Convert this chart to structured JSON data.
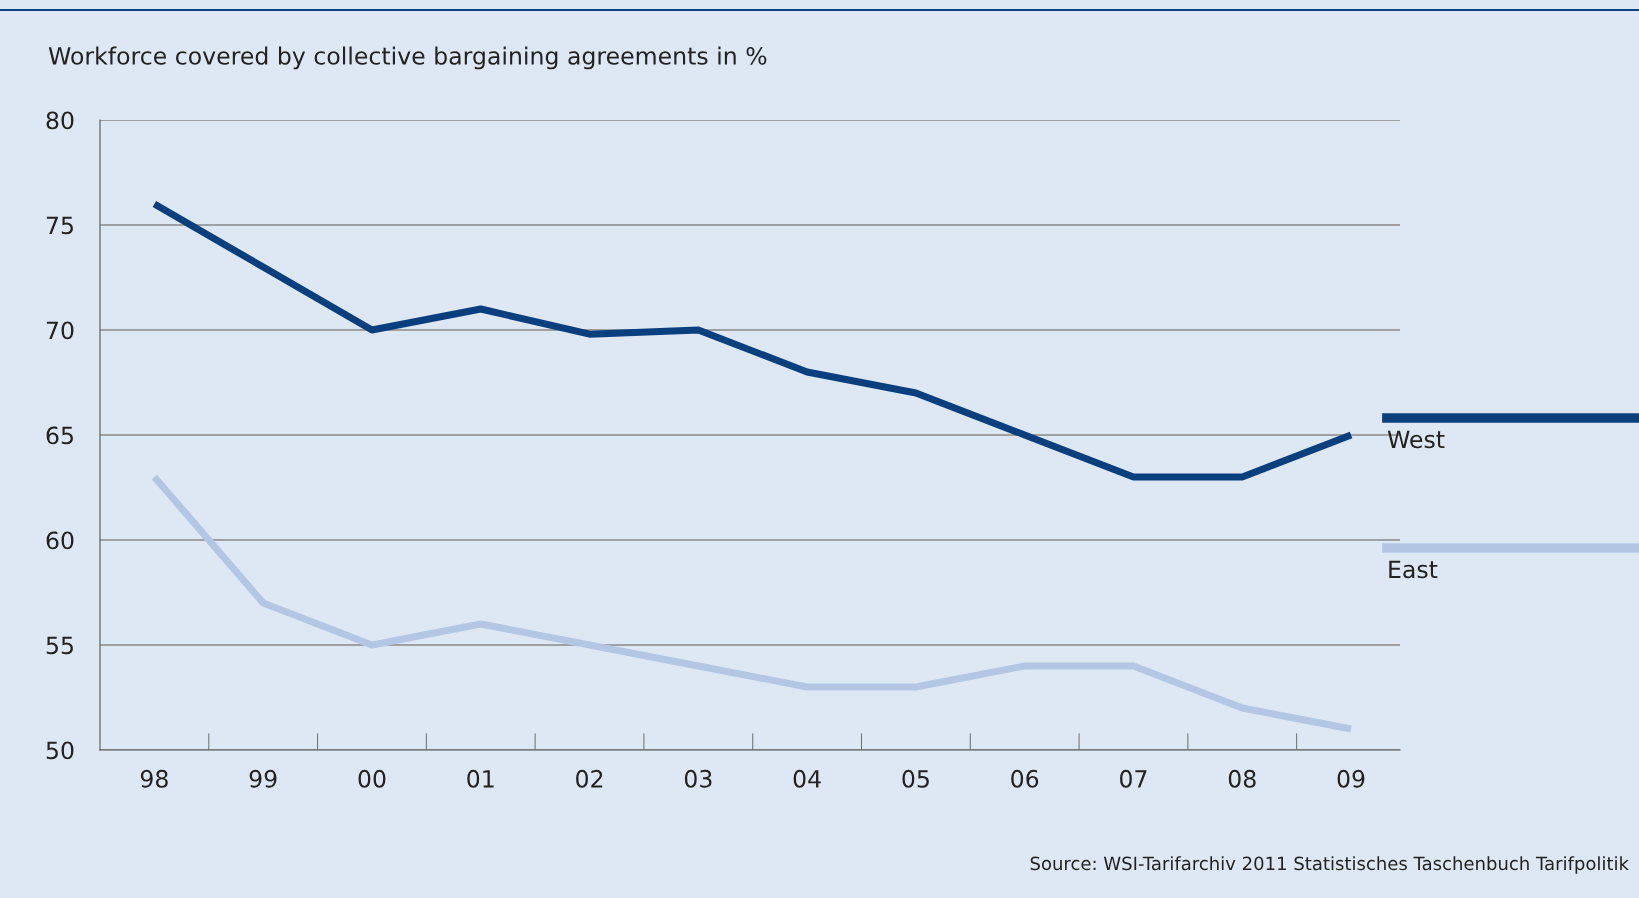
{
  "chart_data": {
    "type": "line",
    "title": "Workforce covered by collective bargaining agreements in %",
    "categories": [
      "98",
      "99",
      "00",
      "01",
      "02",
      "03",
      "04",
      "05",
      "06",
      "07",
      "08",
      "09"
    ],
    "series": [
      {
        "name": "West",
        "color": "#0a3f7e",
        "values": [
          76,
          73,
          70,
          71,
          69.8,
          70,
          68,
          67,
          65,
          63,
          63,
          65
        ]
      },
      {
        "name": "East",
        "color": "#b3c7e5",
        "values": [
          63,
          57,
          55,
          56,
          55,
          54,
          53,
          53,
          54,
          54,
          52,
          51
        ]
      }
    ],
    "ylim": [
      50,
      80
    ],
    "yticks": [
      50,
      55,
      60,
      65,
      70,
      75,
      80
    ],
    "grid": "y",
    "legend": "right",
    "marker": "none",
    "line_style": "solid",
    "annotations": [
      "Source: WSI-Tarifarchiv 2011 Statistisches Taschenbuch Tarifpolitik"
    ]
  }
}
